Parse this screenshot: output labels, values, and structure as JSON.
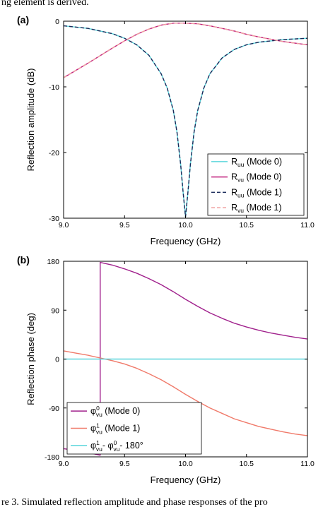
{
  "top_text": "ng element is derived.",
  "caption": "re 3. Simulated reflection amplitude and phase responses of the pro",
  "chart_data": [
    {
      "type": "line",
      "panel_label": "(a)",
      "xlabel": "Frequency (GHz)",
      "ylabel": "Reflection amplitude (dB)",
      "xlim": [
        9.0,
        11.0
      ],
      "ylim": [
        -30,
        0
      ],
      "xticks": [
        "9.0",
        "9.5",
        "10.0",
        "10.5",
        "11.0"
      ],
      "yticks": [
        "0",
        "-10",
        "-20",
        "-30"
      ],
      "grid": false,
      "legend_position": "bottom-right",
      "series": [
        {
          "name": "Ruu (Mode 0)",
          "label_main": "R",
          "label_sub": "uu",
          "label_rest": " (Mode 0)",
          "color": "#5bd6dc",
          "dash": "solid",
          "x": [
            9.0,
            9.2,
            9.4,
            9.5,
            9.6,
            9.7,
            9.8,
            9.85,
            9.9,
            9.93,
            9.96,
            9.98,
            10.0,
            10.02,
            10.04,
            10.07,
            10.1,
            10.15,
            10.2,
            10.3,
            10.4,
            10.5,
            10.6,
            10.8,
            11.0
          ],
          "y": [
            -0.7,
            -1.1,
            -1.9,
            -2.6,
            -3.6,
            -5.2,
            -8.0,
            -10.2,
            -13.6,
            -16.9,
            -21.8,
            -26.0,
            -29.8,
            -26.0,
            -21.8,
            -16.9,
            -13.6,
            -10.2,
            -8.0,
            -5.6,
            -4.3,
            -3.6,
            -3.2,
            -2.8,
            -2.6
          ]
        },
        {
          "name": "Rvu (Mode 0)",
          "label_main": "R",
          "label_sub": "vu",
          "label_rest": " (Mode 0)",
          "color": "#c0207c",
          "dash": "solid",
          "x": [
            9.0,
            9.2,
            9.4,
            9.5,
            9.6,
            9.7,
            9.8,
            9.9,
            10.0,
            10.1,
            10.2,
            10.3,
            10.4,
            10.5,
            10.6,
            10.8,
            11.0
          ],
          "y": [
            -8.6,
            -6.4,
            -4.1,
            -3.0,
            -2.0,
            -1.2,
            -0.6,
            -0.3,
            -0.3,
            -0.4,
            -0.7,
            -1.1,
            -1.5,
            -2.0,
            -2.4,
            -3.1,
            -3.6
          ]
        },
        {
          "name": "Ruu (Mode 1)",
          "label_main": "R",
          "label_sub": "uu",
          "label_rest": " (Mode 1)",
          "color": "#1a2a5a",
          "dash": "dashed",
          "x": [
            9.0,
            9.2,
            9.4,
            9.5,
            9.6,
            9.7,
            9.8,
            9.85,
            9.9,
            9.93,
            9.96,
            9.98,
            10.0,
            10.02,
            10.04,
            10.07,
            10.1,
            10.15,
            10.2,
            10.3,
            10.4,
            10.5,
            10.6,
            10.8,
            11.0
          ],
          "y": [
            -0.7,
            -1.1,
            -1.9,
            -2.6,
            -3.6,
            -5.2,
            -8.0,
            -10.2,
            -13.6,
            -16.9,
            -21.8,
            -26.0,
            -29.8,
            -26.0,
            -21.8,
            -16.9,
            -13.6,
            -10.2,
            -8.0,
            -5.6,
            -4.3,
            -3.6,
            -3.2,
            -2.8,
            -2.6
          ]
        },
        {
          "name": "Rvu (Mode 1)",
          "label_main": "R",
          "label_sub": "vu",
          "label_rest": " (Mode 1)",
          "color": "#f0a0a0",
          "dash": "dashed",
          "x": [
            9.0,
            9.2,
            9.4,
            9.5,
            9.6,
            9.7,
            9.8,
            9.9,
            10.0,
            10.1,
            10.2,
            10.3,
            10.4,
            10.5,
            10.6,
            10.8,
            11.0
          ],
          "y": [
            -8.6,
            -6.4,
            -4.1,
            -3.0,
            -2.0,
            -1.2,
            -0.6,
            -0.3,
            -0.3,
            -0.4,
            -0.7,
            -1.1,
            -1.5,
            -2.0,
            -2.4,
            -3.1,
            -3.6
          ]
        }
      ]
    },
    {
      "type": "line",
      "panel_label": "(b)",
      "xlabel": "Frequency (GHz)",
      "ylabel": "Reflection phase (deg)",
      "xlim": [
        9.0,
        11.0
      ],
      "ylim": [
        -180,
        180
      ],
      "xticks": [
        "9.0",
        "9.5",
        "10.0",
        "10.5",
        "11.0"
      ],
      "yticks": [
        "180",
        "90",
        "0",
        "-90",
        "-180"
      ],
      "grid": false,
      "legend_position": "bottom-left",
      "series": [
        {
          "name": "φ0vu (Mode 0)",
          "label_main": "φ",
          "label_sup": "0",
          "label_sub": "vu",
          "label_rest": " (Mode 0)",
          "color": "#a0208c",
          "dash": "solid",
          "x": [
            9.0,
            9.1,
            9.2,
            9.3,
            9.3,
            9.4,
            9.5,
            9.6,
            9.7,
            9.8,
            9.9,
            10.0,
            10.1,
            10.2,
            10.3,
            10.4,
            10.5,
            10.6,
            10.7,
            10.8,
            10.9,
            11.0
          ],
          "y": [
            -165,
            -168,
            -172,
            -177,
            178,
            173,
            166,
            158,
            148,
            137,
            124,
            110,
            97,
            85,
            75,
            66,
            59,
            53,
            48,
            44,
            40,
            37
          ]
        },
        {
          "name": "φ1vu (Mode 1)",
          "label_main": "φ",
          "label_sup": "1",
          "label_sub": "vu",
          "label_rest": " (Mode 1)",
          "color": "#f07a6a",
          "dash": "solid",
          "x": [
            9.0,
            9.1,
            9.2,
            9.3,
            9.4,
            9.5,
            9.6,
            9.7,
            9.8,
            9.9,
            10.0,
            10.1,
            10.2,
            10.3,
            10.4,
            10.5,
            10.6,
            10.7,
            10.8,
            10.9,
            11.0
          ],
          "y": [
            15,
            11,
            7,
            2,
            -3,
            -9,
            -17,
            -27,
            -38,
            -51,
            -65,
            -78,
            -90,
            -100,
            -110,
            -117,
            -124,
            -129,
            -134,
            -138,
            -141
          ]
        },
        {
          "name": "φ1vu - φ0vu - 180°",
          "label_main": "φ",
          "label_sup": "1",
          "label_sub": "vu",
          "label_rest": "- φ",
          "label_sup2": "0",
          "label_sub2": "vu",
          "label_rest2": "- 180°",
          "color": "#5bd6dc",
          "dash": "solid",
          "x": [
            9.0,
            11.0
          ],
          "y": [
            0,
            0
          ]
        }
      ]
    }
  ]
}
